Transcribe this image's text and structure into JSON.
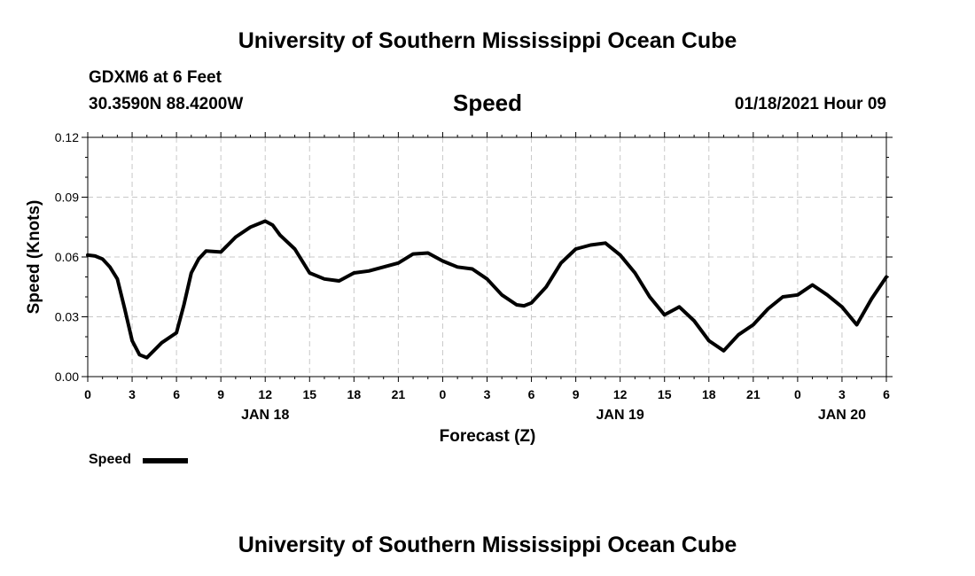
{
  "page": {
    "header_title": "University of Southern Mississippi Ocean Cube",
    "footer_title": "University of Southern Mississippi Ocean Cube",
    "station_line": "GDXM6 at 6 Feet",
    "coords_line": "30.3590N 88.4200W",
    "datetime_line": "01/18/2021 Hour 09",
    "legend_label": "Speed"
  },
  "chart_data": {
    "type": "line",
    "title": "Speed",
    "xlabel": "Forecast (Z)",
    "ylabel": "Speed (Knots)",
    "x_unit": "forecast hours since 00Z Jan 18",
    "xlim": [
      0,
      54
    ],
    "ylim": [
      0,
      0.12
    ],
    "grid": true,
    "legend_position": "bottom-left",
    "line_color": "#000000",
    "x_ticks": [
      0,
      3,
      6,
      9,
      12,
      15,
      18,
      21,
      24,
      27,
      30,
      33,
      36,
      39,
      42,
      45,
      48,
      51,
      54
    ],
    "x_tick_labels": [
      "0",
      "3",
      "6",
      "9",
      "12",
      "15",
      "18",
      "21",
      "0",
      "3",
      "6",
      "9",
      "12",
      "15",
      "18",
      "21",
      "0",
      "3",
      "6"
    ],
    "y_ticks": [
      0,
      0.03,
      0.06,
      0.09,
      0.12
    ],
    "y_tick_labels": [
      "0.00",
      "0.03",
      "0.06",
      "0.09",
      "0.12"
    ],
    "date_labels": [
      {
        "x": 12,
        "label": "JAN 18"
      },
      {
        "x": 36,
        "label": "JAN 19"
      },
      {
        "x": 51,
        "label": "JAN 20"
      }
    ],
    "series": [
      {
        "name": "Speed",
        "x": [
          0,
          0.5,
          1,
          1.5,
          2,
          2.5,
          3,
          3.5,
          4,
          5,
          6,
          6.5,
          7,
          7.5,
          8,
          9,
          10,
          11,
          12,
          12.5,
          13,
          14,
          15,
          16,
          17,
          18,
          19,
          20,
          21,
          22,
          23,
          24,
          25,
          26,
          27,
          28,
          29,
          29.5,
          30,
          31,
          32,
          33,
          34,
          35,
          36,
          37,
          38,
          39,
          40,
          41,
          42,
          43,
          44,
          45,
          46,
          47,
          48,
          49,
          50,
          51,
          52,
          53,
          54
        ],
        "values": [
          0.061,
          0.0605,
          0.059,
          0.055,
          0.049,
          0.034,
          0.018,
          0.011,
          0.0095,
          0.017,
          0.022,
          0.036,
          0.052,
          0.059,
          0.063,
          0.0625,
          0.07,
          0.075,
          0.078,
          0.076,
          0.071,
          0.064,
          0.052,
          0.049,
          0.048,
          0.052,
          0.053,
          0.055,
          0.057,
          0.0615,
          0.062,
          0.058,
          0.055,
          0.054,
          0.049,
          0.041,
          0.036,
          0.0355,
          0.037,
          0.045,
          0.057,
          0.064,
          0.066,
          0.067,
          0.061,
          0.052,
          0.04,
          0.031,
          0.035,
          0.028,
          0.018,
          0.013,
          0.021,
          0.026,
          0.034,
          0.04,
          0.041,
          0.046,
          0.041,
          0.035,
          0.026,
          0.039,
          0.05
        ]
      }
    ]
  }
}
